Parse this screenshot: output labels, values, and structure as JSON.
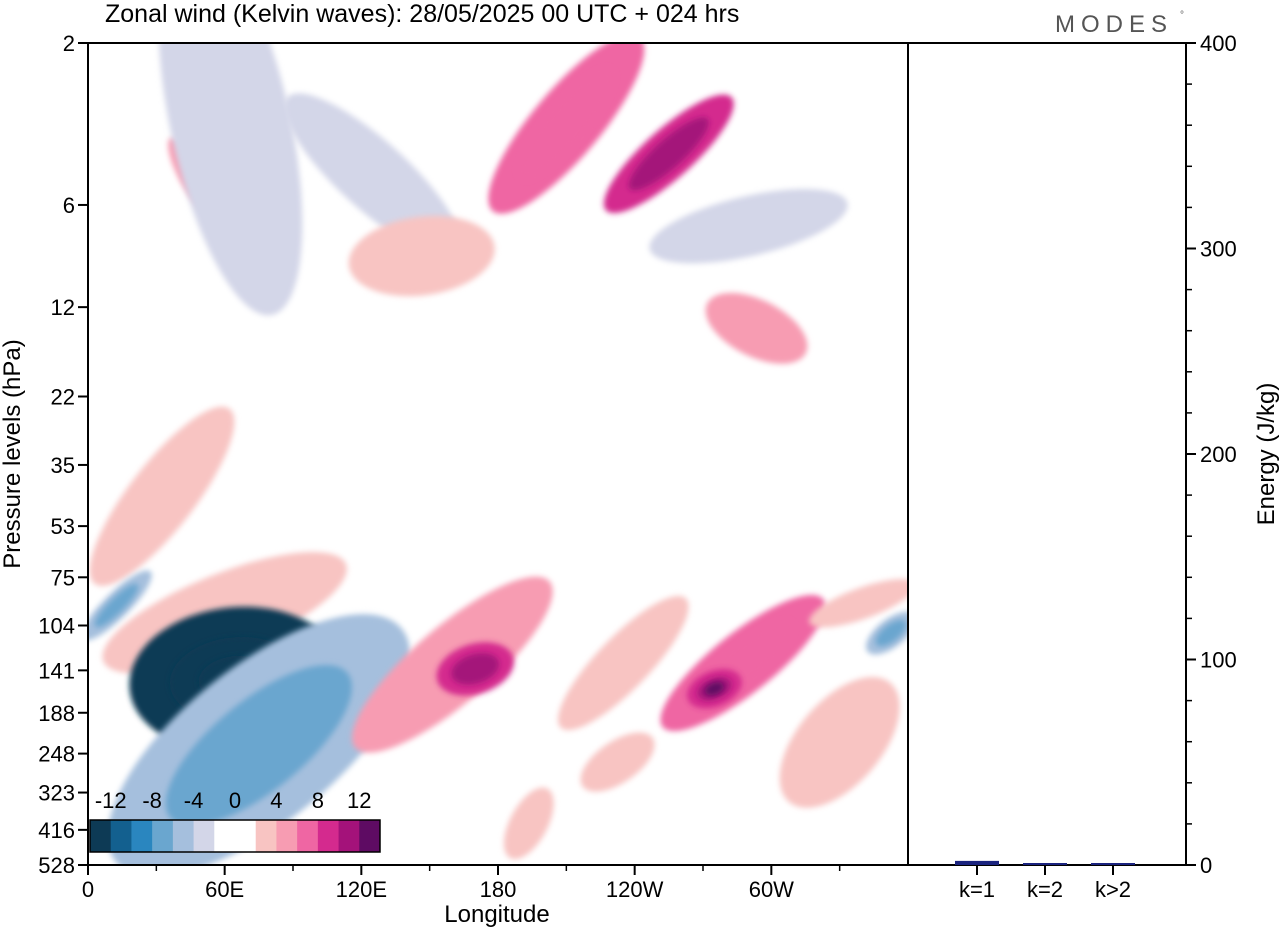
{
  "chart_data": {
    "type": "heatmap",
    "title": "Zonal wind (Kelvin waves):  28/05/2025  00 UTC  + 024 hrs",
    "brand": "MODES",
    "xlabel": "Longitude",
    "ylabel": "Pressure levels (hPa)",
    "x_ticks": [
      "0",
      "60E",
      "120E",
      "180",
      "120W",
      "60W"
    ],
    "y_ticks": [
      "2",
      "6",
      "12",
      "22",
      "35",
      "53",
      "75",
      "104",
      "141",
      "188",
      "248",
      "323",
      "416",
      "528"
    ],
    "colorbar": {
      "labels": [
        "-12",
        "-8",
        "-4",
        "0",
        "4",
        "8",
        "12"
      ],
      "colors": [
        "#0d3a55",
        "#13608f",
        "#2a86bf",
        "#6aa6cf",
        "#a5bfdd",
        "#d3d6e8",
        "#ffffff",
        "#ffffff",
        "#f8c4c2",
        "#f79cb2",
        "#ef66a3",
        "#d42a8e",
        "#a4127a",
        "#5e0b63"
      ]
    },
    "regions": [
      {
        "lon": [
          38,
          52
        ],
        "lev": [
          4,
          6
        ],
        "value": 4,
        "shape": "band"
      },
      {
        "lon": [
          90,
          160
        ],
        "lev": [
          3,
          8
        ],
        "value": -4,
        "shape": "band"
      },
      {
        "lon": [
          118,
          175
        ],
        "lev": [
          9,
          8
        ],
        "value": 2,
        "shape": "blob"
      },
      {
        "lon": [
          45,
          80
        ],
        "lev": [
          1,
          12
        ],
        "value": -3,
        "shape": "band"
      },
      {
        "lon": [
          180,
          240
        ],
        "lev": [
          6,
          2
        ],
        "value": 6,
        "shape": "band"
      },
      {
        "lon": [
          230,
          280
        ],
        "lev": [
          6,
          3
        ],
        "value": 8,
        "shape": "band"
      },
      {
        "lon": [
          250,
          330
        ],
        "lev": [
          8,
          6
        ],
        "value": -3,
        "shape": "band"
      },
      {
        "lon": [
          275,
          312
        ],
        "lev": [
          12,
          16
        ],
        "value": 4,
        "shape": "blob"
      },
      {
        "lon": [
          290,
          340
        ],
        "lev": [
          28,
          26
        ],
        "value": -1,
        "shape": "blob"
      },
      {
        "lon": [
          5,
          60
        ],
        "lev": [
          75,
          25
        ],
        "value": 3,
        "shape": "band"
      },
      {
        "lon": [
          0,
          25
        ],
        "lev": [
          110,
          75
        ],
        "value": -6,
        "shape": "band"
      },
      {
        "lon": [
          10,
          110
        ],
        "lev": [
          130,
          70
        ],
        "value": 2,
        "shape": "band"
      },
      {
        "lon": [
          20,
          110
        ],
        "lev": [
          160,
          140
        ],
        "value": -14,
        "shape": "core"
      },
      {
        "lon": [
          15,
          135
        ],
        "lev": [
          500,
          110
        ],
        "value": -5,
        "shape": "plume"
      },
      {
        "lon": [
          120,
          200
        ],
        "lev": [
          230,
          80
        ],
        "value": 4,
        "shape": "band"
      },
      {
        "lon": [
          155,
          185
        ],
        "lev": [
          150,
          130
        ],
        "value": 8,
        "shape": "core"
      },
      {
        "lon": [
          210,
          260
        ],
        "lev": [
          200,
          90
        ],
        "value": 3,
        "shape": "band"
      },
      {
        "lon": [
          255,
          320
        ],
        "lev": [
          200,
          90
        ],
        "value": 6,
        "shape": "band"
      },
      {
        "lon": [
          265,
          285
        ],
        "lev": [
          170,
          150
        ],
        "value": 9,
        "shape": "core"
      },
      {
        "lon": [
          320,
          360
        ],
        "lev": [
          100,
          80
        ],
        "value": 3,
        "shape": "band"
      },
      {
        "lon": [
          345,
          360
        ],
        "lev": [
          120,
          100
        ],
        "value": -6,
        "shape": "blob"
      },
      {
        "lon": [
          310,
          350
        ],
        "lev": [
          330,
          160
        ],
        "value": 3,
        "shape": "blob"
      },
      {
        "lon": [
          187,
          200
        ],
        "lev": [
          480,
          330
        ],
        "value": 2,
        "shape": "blob"
      },
      {
        "lon": [
          220,
          245
        ],
        "lev": [
          300,
          230
        ],
        "value": 2,
        "shape": "blob"
      },
      {
        "lon": [
          310,
          325
        ],
        "lev": [
          528,
          450
        ],
        "value": -2,
        "shape": "blob"
      }
    ],
    "energy": {
      "ylabel": "Energy (J/kg)",
      "ylim": [
        0,
        400
      ],
      "y_ticks": [
        "0",
        "100",
        "200",
        "300",
        "400"
      ],
      "categories": [
        "k=1",
        "k=2",
        "k>2"
      ],
      "values": [
        2,
        0.5,
        0.5
      ],
      "bar_color": "#1a237e"
    }
  }
}
